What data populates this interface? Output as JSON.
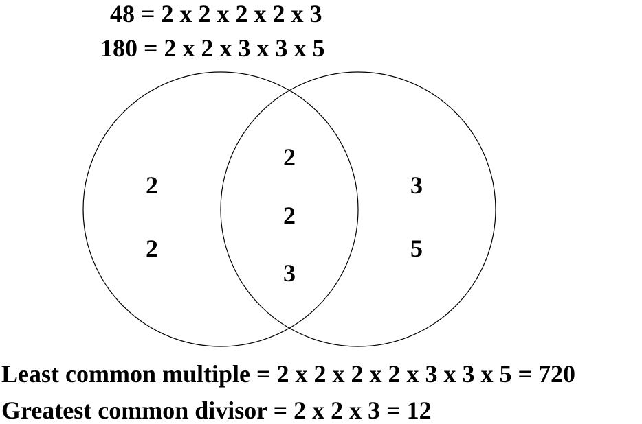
{
  "factorizations": {
    "line_48": "48 = 2 x 2 x 2 x 2 x 3",
    "line_180": "180 = 2 x 2 x 3 x 3 x 5"
  },
  "venn": {
    "left_only": [
      "2",
      "2"
    ],
    "intersection": [
      "2",
      "2",
      "3"
    ],
    "right_only": [
      "3",
      "5"
    ]
  },
  "results": {
    "lcm": "Least common multiple = 2 x 2 x 2 x 2 x 3 x 3 x 5 = 720",
    "gcd": "Greatest common divisor = 2 x 2 x 3 = 12"
  }
}
